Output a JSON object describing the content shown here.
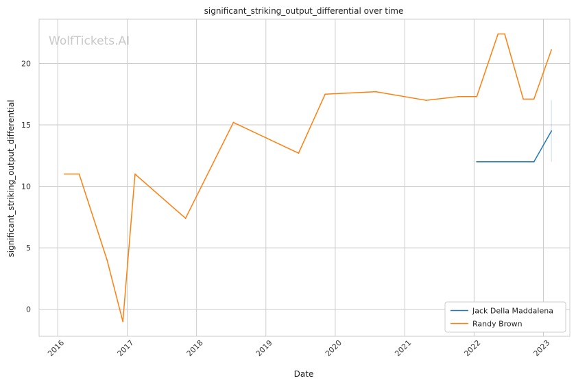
{
  "chart_data": {
    "type": "line",
    "title": "significant_striking_output_differential over time",
    "xlabel": "Date",
    "ylabel": "significant_striking_output_differential",
    "watermark": "WolfTickets.AI",
    "x_ticks": [
      "2016",
      "2017",
      "2018",
      "2019",
      "2020",
      "2021",
      "2022",
      "2023"
    ],
    "y_ticks": [
      0,
      5,
      10,
      15,
      20
    ],
    "xlim": [
      "2015-09-25",
      "2023-05-20"
    ],
    "ylim": [
      -2.2,
      23.6
    ],
    "grid": true,
    "legend_position": "lower-right",
    "series": [
      {
        "name": "Jack Della Maddalena",
        "color": "#1f77b4",
        "points": [
          {
            "x": "2022-01-15",
            "y": 12.0
          },
          {
            "x": "2022-11-12",
            "y": 12.0
          },
          {
            "x": "2023-02-12",
            "y": 14.5
          }
        ],
        "error_band": {
          "x": "2023-02-12",
          "low": 12.0,
          "high": 17.0
        }
      },
      {
        "name": "Randy Brown",
        "color": "#ff7f0e",
        "points": [
          {
            "x": "2016-02-06",
            "y": 11.0
          },
          {
            "x": "2016-04-23",
            "y": 11.0
          },
          {
            "x": "2016-09-17",
            "y": 4.0
          },
          {
            "x": "2016-12-09",
            "y": -1.0
          },
          {
            "x": "2017-02-11",
            "y": 11.0
          },
          {
            "x": "2017-11-04",
            "y": 7.4
          },
          {
            "x": "2018-07-14",
            "y": 15.2
          },
          {
            "x": "2019-06-22",
            "y": 12.7
          },
          {
            "x": "2019-11-09",
            "y": 17.5
          },
          {
            "x": "2020-08-01",
            "y": 17.7
          },
          {
            "x": "2021-04-24",
            "y": 17.0
          },
          {
            "x": "2021-10-09",
            "y": 17.3
          },
          {
            "x": "2022-01-15",
            "y": 17.3
          },
          {
            "x": "2022-05-07",
            "y": 22.4
          },
          {
            "x": "2022-06-11",
            "y": 22.4
          },
          {
            "x": "2022-09-17",
            "y": 17.1
          },
          {
            "x": "2022-11-12",
            "y": 17.1
          },
          {
            "x": "2023-02-12",
            "y": 21.1
          }
        ]
      }
    ]
  }
}
